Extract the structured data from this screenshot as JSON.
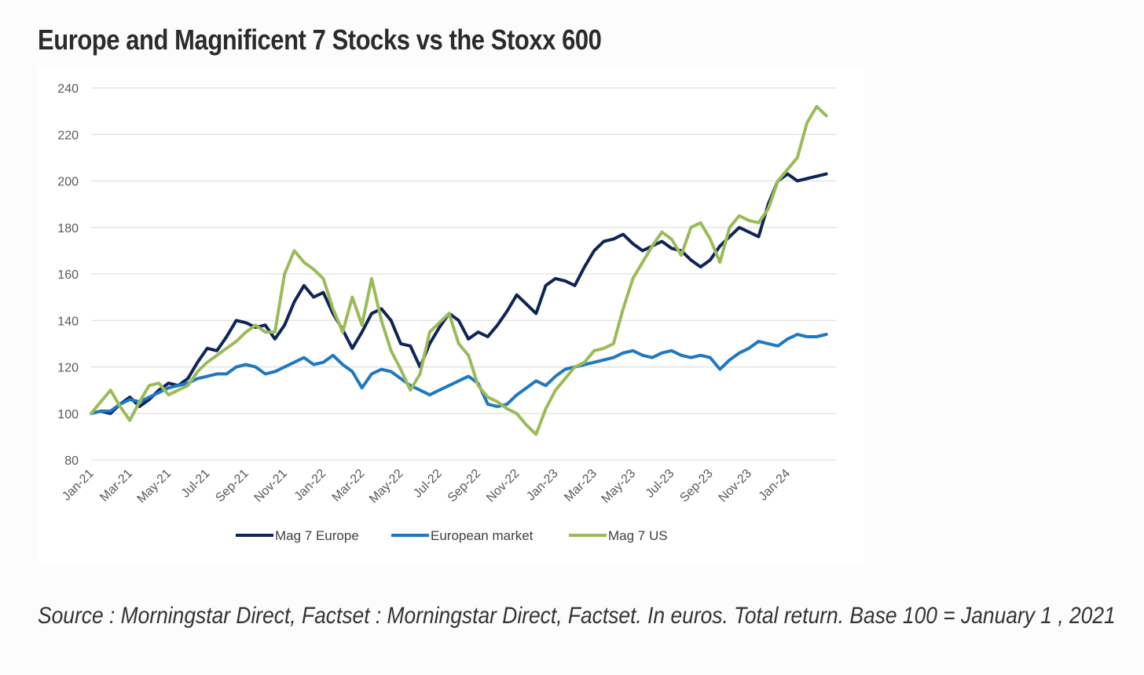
{
  "title": "Europe and Magnificent 7 Stocks vs the Stoxx 600",
  "source": "Source : Morningstar Direct, Factset : Morningstar Direct, Factset. In euros. Total return. Base 100 = January 1 , 2021",
  "chart_data": {
    "type": "line",
    "title": "Europe and Magnificent 7 Stocks vs the Stoxx 600",
    "xlabel": "",
    "ylabel": "",
    "ylim": [
      80,
      240
    ],
    "yticks": [
      80,
      100,
      120,
      140,
      160,
      180,
      200,
      220,
      240
    ],
    "xlim": [
      0,
      38.5
    ],
    "xtick_labels": [
      "Jan-21",
      "Mar-21",
      "May-21",
      "Jul-21",
      "Sep-21",
      "Nov-21",
      "Jan-22",
      "Mar-22",
      "May-22",
      "Jul-22",
      "Sep-22",
      "Nov-22",
      "Jan-23",
      "Mar-23",
      "May-23",
      "Jul-23",
      "Sep-23",
      "Nov-23",
      "Jan-24"
    ],
    "xtick_positions": [
      0,
      2,
      4,
      6,
      8,
      10,
      12,
      14,
      16,
      18,
      20,
      22,
      24,
      26,
      28,
      30,
      32,
      34,
      36
    ],
    "grid": "horizontal",
    "legend_position": "bottom",
    "series": [
      {
        "name": "Mag 7 Europe",
        "color": "#0d2557",
        "x": [
          0,
          0.5,
          1,
          1.5,
          2,
          2.5,
          3,
          3.5,
          4,
          4.5,
          5,
          5.5,
          6,
          6.5,
          7,
          7.5,
          8,
          8.5,
          9,
          9.5,
          10,
          10.5,
          11,
          11.5,
          12,
          12.5,
          13,
          13.5,
          14,
          14.5,
          15,
          15.5,
          16,
          16.5,
          17,
          17.5,
          18,
          18.5,
          19,
          19.5,
          20,
          20.5,
          21,
          21.5,
          22,
          22.5,
          23,
          23.5,
          24,
          24.5,
          25,
          25.5,
          26,
          26.5,
          27,
          27.5,
          28,
          28.5,
          29,
          29.5,
          30,
          30.5,
          31,
          31.5,
          32,
          32.5,
          33,
          33.5,
          34,
          34.5,
          35,
          35.5,
          36,
          36.5,
          37,
          37.5,
          38
        ],
        "values": [
          100,
          101,
          100,
          104,
          107,
          103,
          106,
          110,
          113,
          112,
          115,
          122,
          128,
          127,
          133,
          140,
          139,
          137,
          138,
          132,
          138,
          148,
          155,
          150,
          152,
          143,
          136,
          128,
          135,
          143,
          145,
          140,
          130,
          129,
          120,
          130,
          137,
          143,
          140,
          132,
          135,
          133,
          138,
          144,
          151,
          147,
          143,
          155,
          158,
          157,
          155,
          163,
          170,
          174,
          175,
          177,
          173,
          170,
          172,
          174,
          171,
          170,
          166,
          163,
          166,
          172,
          176,
          180,
          178,
          176,
          190,
          200,
          203,
          200,
          201,
          202,
          203
        ]
      },
      {
        "name": "European market",
        "color": "#1f78c1",
        "x": [
          0,
          0.5,
          1,
          1.5,
          2,
          2.5,
          3,
          3.5,
          4,
          4.5,
          5,
          5.5,
          6,
          6.5,
          7,
          7.5,
          8,
          8.5,
          9,
          9.5,
          10,
          10.5,
          11,
          11.5,
          12,
          12.5,
          13,
          13.5,
          14,
          14.5,
          15,
          15.5,
          16,
          16.5,
          17,
          17.5,
          18,
          18.5,
          19,
          19.5,
          20,
          20.5,
          21,
          21.5,
          22,
          22.5,
          23,
          23.5,
          24,
          24.5,
          25,
          25.5,
          26,
          26.5,
          27,
          27.5,
          28,
          28.5,
          29,
          29.5,
          30,
          30.5,
          31,
          31.5,
          32,
          32.5,
          33,
          33.5,
          34,
          34.5,
          35,
          35.5,
          36,
          36.5,
          37,
          37.5,
          38
        ],
        "values": [
          100,
          101,
          101,
          104,
          106,
          105,
          107,
          109,
          111,
          112,
          113,
          115,
          116,
          117,
          117,
          120,
          121,
          120,
          117,
          118,
          120,
          122,
          124,
          121,
          122,
          125,
          121,
          118,
          111,
          117,
          119,
          118,
          115,
          112,
          110,
          108,
          110,
          112,
          114,
          116,
          113,
          104,
          103,
          104,
          108,
          111,
          114,
          112,
          116,
          119,
          120,
          121,
          122,
          123,
          124,
          126,
          127,
          125,
          124,
          126,
          127,
          125,
          124,
          125,
          124,
          119,
          123,
          126,
          128,
          131,
          130,
          129,
          132,
          134,
          133,
          133,
          134
        ]
      },
      {
        "name": "Mag 7 US",
        "color": "#9bbb59",
        "x": [
          0,
          0.5,
          1,
          1.5,
          2,
          2.5,
          3,
          3.5,
          4,
          4.5,
          5,
          5.5,
          6,
          6.5,
          7,
          7.5,
          8,
          8.5,
          9,
          9.5,
          10,
          10.5,
          11,
          11.5,
          12,
          12.5,
          13,
          13.5,
          14,
          14.5,
          15,
          15.5,
          16,
          16.5,
          17,
          17.5,
          18,
          18.5,
          19,
          19.5,
          20,
          20.5,
          21,
          21.5,
          22,
          22.5,
          23,
          23.5,
          24,
          24.5,
          25,
          25.5,
          26,
          26.5,
          27,
          27.5,
          28,
          28.5,
          29,
          29.5,
          30,
          30.5,
          31,
          31.5,
          32,
          32.5,
          33,
          33.5,
          34,
          34.5,
          35,
          35.5,
          36,
          36.5,
          37,
          37.5,
          38
        ],
        "values": [
          100,
          105,
          110,
          103,
          97,
          105,
          112,
          113,
          108,
          110,
          112,
          118,
          122,
          125,
          128,
          131,
          135,
          138,
          135,
          135,
          160,
          170,
          165,
          162,
          158,
          145,
          135,
          150,
          138,
          158,
          140,
          127,
          119,
          110,
          117,
          135,
          139,
          143,
          130,
          125,
          112,
          107,
          105,
          102,
          100,
          95,
          91,
          102,
          110,
          115,
          120,
          122,
          127,
          128,
          130,
          145,
          158,
          165,
          172,
          178,
          175,
          168,
          180,
          182,
          175,
          165,
          180,
          185,
          183,
          182,
          188,
          200,
          205,
          210,
          225,
          232,
          228
        ]
      }
    ]
  }
}
